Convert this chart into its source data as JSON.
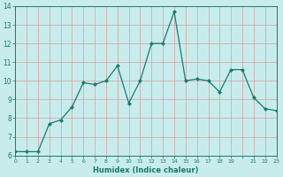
{
  "x": [
    0,
    1,
    2,
    3,
    4,
    5,
    6,
    7,
    8,
    9,
    10,
    11,
    12,
    13,
    14,
    15,
    16,
    17,
    18,
    19,
    20,
    21,
    22,
    23
  ],
  "y": [
    6.2,
    6.2,
    6.2,
    7.7,
    7.9,
    8.6,
    9.9,
    9.8,
    10.0,
    10.8,
    8.8,
    10.0,
    12.0,
    12.0,
    13.7,
    10.0,
    10.1,
    10.0,
    9.4,
    10.6,
    10.6,
    9.1,
    8.5,
    8.4
  ],
  "line_color": "#1a7a6e",
  "marker": "D",
  "markersize": 2.0,
  "linewidth": 0.9,
  "bg_color": "#c8ecec",
  "grid_color": "#d4a8a8",
  "tick_color": "#1a7a6e",
  "label_color": "#1a7a6e",
  "xlabel": "Humidex (Indice chaleur)",
  "ylim": [
    6,
    14
  ],
  "xlim": [
    0,
    23
  ],
  "yticks": [
    6,
    7,
    8,
    9,
    10,
    11,
    12,
    13,
    14
  ],
  "xticks": [
    0,
    1,
    2,
    3,
    4,
    5,
    6,
    7,
    8,
    9,
    10,
    11,
    12,
    13,
    14,
    15,
    16,
    17,
    18,
    19,
    20,
    21,
    22,
    23
  ],
  "xtick_labels": [
    "0",
    "1",
    "2",
    "3",
    "4",
    "5",
    "6",
    "7",
    "8",
    "9",
    "10",
    "11",
    "12",
    "13",
    "14",
    "15",
    "16",
    "17",
    "18",
    "19",
    "",
    "21",
    "22",
    "23"
  ]
}
